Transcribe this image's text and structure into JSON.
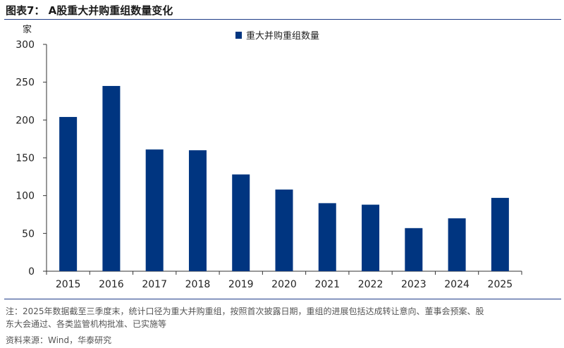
{
  "figure": {
    "title": "图表7： A股重大并购重组数量变化",
    "note_line1": "注：2025年数据截至三季度末，统计口径为重大并购重组，按照首次披露日期，重组的进展包括达成转让意向、董事会预案、股",
    "note_line2": "东大会通过、各类监管机构批准、已实施等",
    "source": "资料来源：Wind，华泰研究"
  },
  "chart_data": {
    "type": "bar",
    "title": "",
    "xlabel": "",
    "ylabel": "家",
    "categories": [
      "2015",
      "2016",
      "2017",
      "2018",
      "2019",
      "2020",
      "2021",
      "2022",
      "2023",
      "2024",
      "2025"
    ],
    "series": [
      {
        "name": "重大并购重组数量",
        "values": [
          204,
          245,
          161,
          160,
          128,
          108,
          90,
          88,
          57,
          70,
          97
        ]
      }
    ],
    "ylim": [
      0,
      300
    ],
    "yticks": [
      0,
      50,
      100,
      150,
      200,
      250,
      300
    ],
    "grid": false,
    "legend_position": "top-right",
    "colors": {
      "bar": "#003580",
      "axis": "#333333"
    }
  }
}
